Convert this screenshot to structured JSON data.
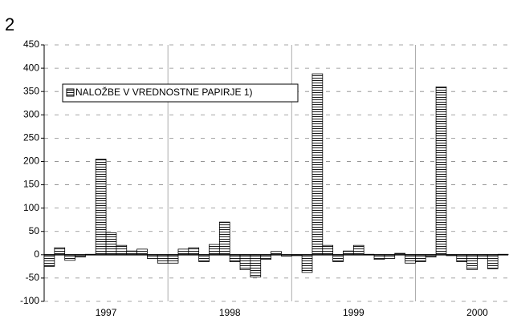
{
  "chart_data": {
    "type": "bar",
    "title": "2",
    "categories": [
      null,
      null,
      null,
      null,
      null,
      "1997",
      null,
      null,
      null,
      null,
      null,
      null,
      null,
      null,
      null,
      null,
      null,
      "1998",
      null,
      null,
      null,
      null,
      null,
      null,
      null,
      null,
      null,
      null,
      null,
      "1999",
      null,
      null,
      null,
      null,
      null,
      null,
      null,
      null,
      null,
      null,
      null,
      "2000",
      null,
      null,
      null
    ],
    "series": [
      {
        "name": "NALOŽBE V VREDNOSTNE PAPIRJE 1)",
        "color": "#000000",
        "values": [
          -25,
          15,
          -12,
          -5,
          1,
          205,
          47,
          20,
          8,
          12,
          -8,
          -18,
          -18,
          12,
          15,
          -15,
          22,
          70,
          -15,
          -32,
          -48,
          -10,
          7,
          -3,
          -2,
          -38,
          388,
          20,
          -15,
          8,
          20,
          1,
          -10,
          -8,
          3,
          -18,
          -15,
          -5,
          360,
          -2,
          -15,
          -32,
          -8,
          -30,
          1
        ]
      }
    ],
    "ylim": [
      -100,
      450
    ],
    "yticks": [
      -100,
      -50,
      0,
      50,
      100,
      150,
      200,
      250,
      300,
      350,
      400,
      450
    ],
    "grid": true,
    "legend": "upper left"
  }
}
